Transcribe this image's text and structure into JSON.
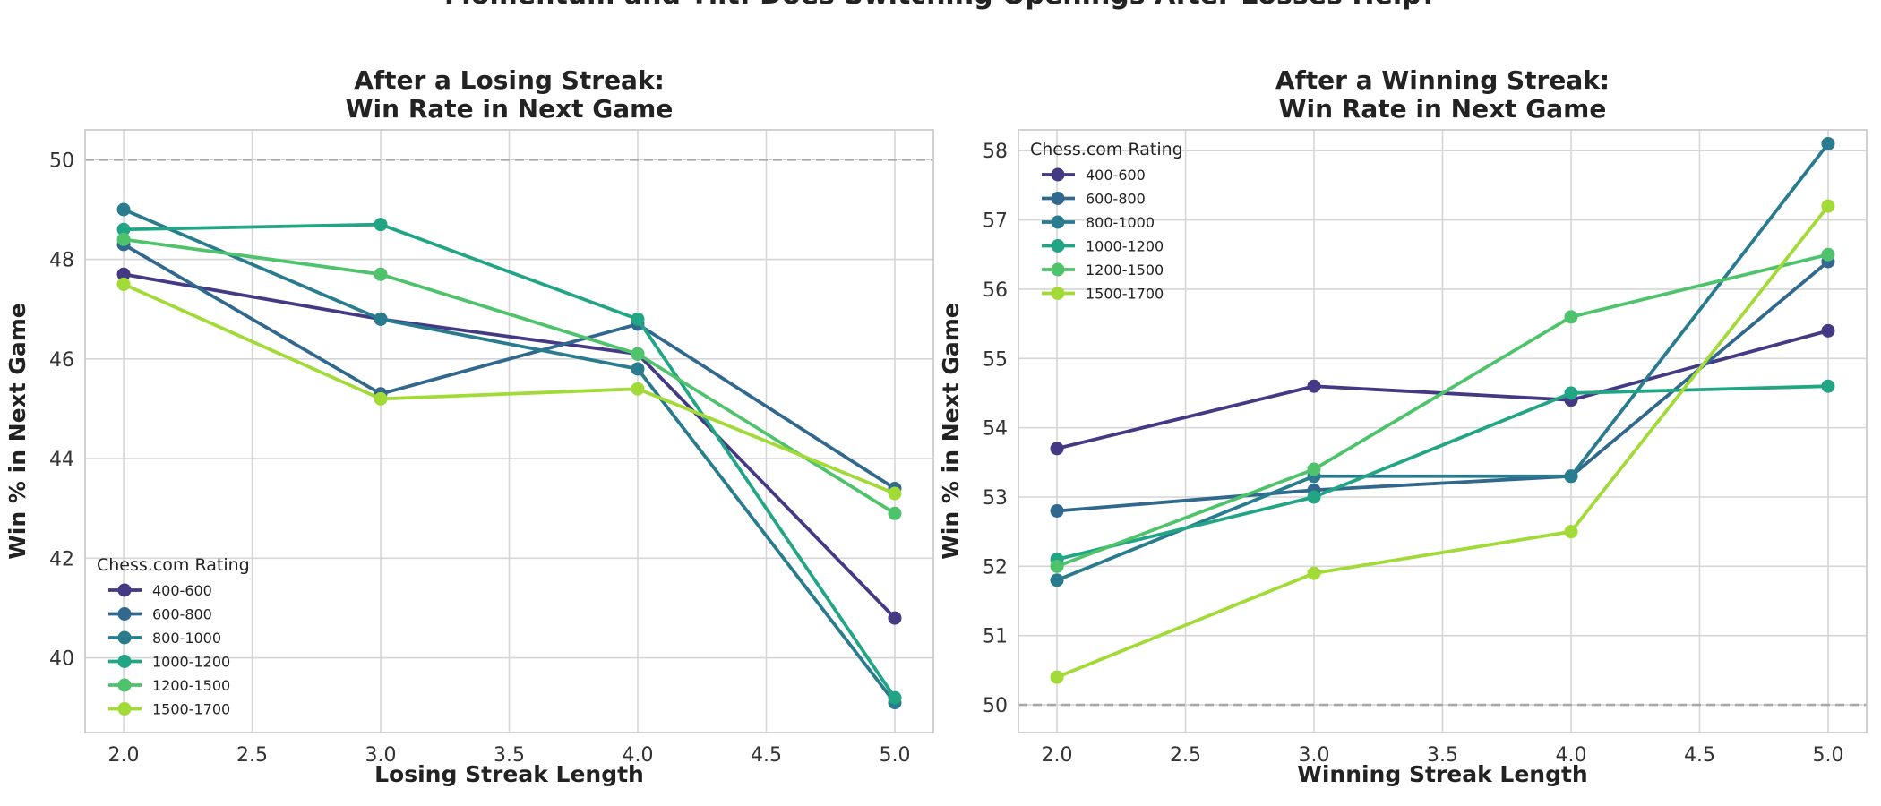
{
  "figure": {
    "suptitle": "Momentum and Tilt: Does Switching Openings After Losses Help?"
  },
  "chart_data": [
    {
      "type": "line",
      "title_lines": [
        "After a Losing Streak:",
        "Win Rate in Next Game"
      ],
      "xlabel": "Losing Streak Length",
      "ylabel": "Win % in Next Game",
      "x": [
        2.0,
        3.0,
        4.0,
        5.0
      ],
      "xlim": [
        1.85,
        5.15
      ],
      "ylim": [
        38.5,
        50.6
      ],
      "xticks": [
        2.0,
        2.5,
        3.0,
        3.5,
        4.0,
        4.5,
        5.0
      ],
      "yticks": [
        40,
        42,
        44,
        46,
        48,
        50
      ],
      "reference_line": 50,
      "grid": true,
      "legend": {
        "title": "Chess.com Rating",
        "placement": "lower-left"
      },
      "series": [
        {
          "name": "400-600",
          "color": "#443983",
          "values": [
            47.7,
            46.8,
            46.1,
            40.8
          ]
        },
        {
          "name": "600-800",
          "color": "#31688e",
          "values": [
            48.3,
            45.3,
            46.7,
            43.4
          ]
        },
        {
          "name": "800-1000",
          "color": "#287c8e",
          "values": [
            49.0,
            46.8,
            45.8,
            39.1
          ]
        },
        {
          "name": "1000-1200",
          "color": "#21a585",
          "values": [
            48.6,
            48.7,
            46.8,
            39.2
          ]
        },
        {
          "name": "1200-1500",
          "color": "#4ec36b",
          "values": [
            48.4,
            47.7,
            46.1,
            42.9
          ]
        },
        {
          "name": "1500-1700",
          "color": "#a2da37",
          "values": [
            47.5,
            45.2,
            45.4,
            43.3
          ]
        }
      ]
    },
    {
      "type": "line",
      "title_lines": [
        "After a Winning Streak:",
        "Win Rate in Next Game"
      ],
      "xlabel": "Winning Streak Length",
      "ylabel": "Win % in Next Game",
      "x": [
        2.0,
        3.0,
        4.0,
        5.0
      ],
      "xlim": [
        1.85,
        5.15
      ],
      "ylim": [
        49.6,
        58.3
      ],
      "xticks": [
        2.0,
        2.5,
        3.0,
        3.5,
        4.0,
        4.5,
        5.0
      ],
      "yticks": [
        50,
        51,
        52,
        53,
        54,
        55,
        56,
        57,
        58
      ],
      "reference_line": 50,
      "grid": true,
      "legend": {
        "title": "Chess.com Rating",
        "placement": "upper-left"
      },
      "series": [
        {
          "name": "400-600",
          "color": "#443983",
          "values": [
            53.7,
            54.6,
            54.4,
            55.4
          ]
        },
        {
          "name": "600-800",
          "color": "#31688e",
          "values": [
            52.8,
            53.1,
            53.3,
            56.4
          ]
        },
        {
          "name": "800-1000",
          "color": "#287c8e",
          "values": [
            51.8,
            53.3,
            53.3,
            58.1
          ]
        },
        {
          "name": "1000-1200",
          "color": "#21a585",
          "values": [
            52.1,
            53.0,
            54.5,
            54.6
          ]
        },
        {
          "name": "1200-1500",
          "color": "#4ec36b",
          "values": [
            52.0,
            53.4,
            55.6,
            56.5
          ]
        },
        {
          "name": "1500-1700",
          "color": "#a2da37",
          "values": [
            50.4,
            51.9,
            52.5,
            57.2
          ]
        }
      ]
    }
  ]
}
